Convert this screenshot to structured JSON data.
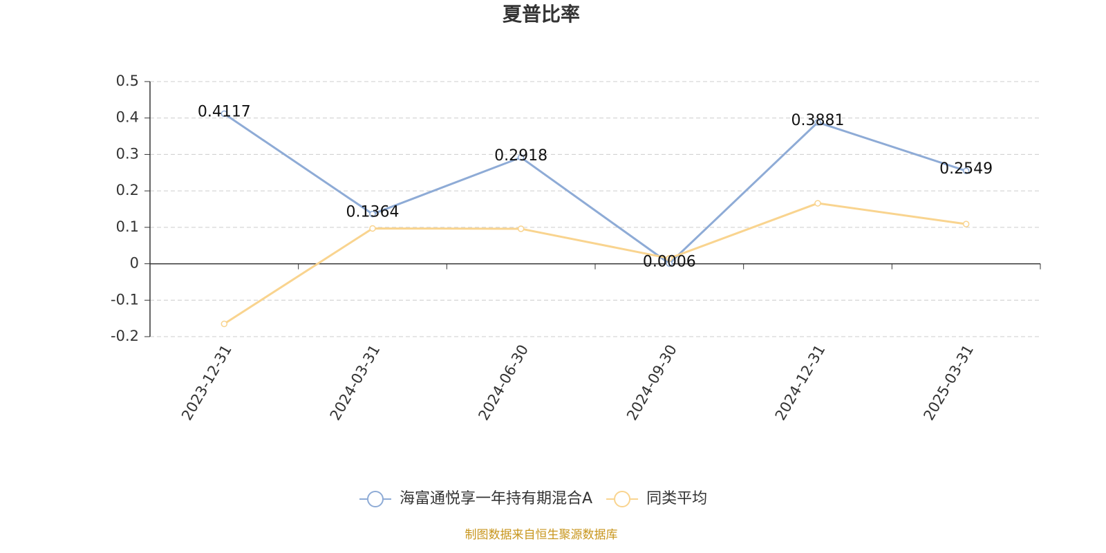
{
  "chart_data": {
    "type": "line",
    "title": "夏普比率",
    "categories": [
      "2023-12-31",
      "2024-03-31",
      "2024-06-30",
      "2024-09-30",
      "2024-12-31",
      "2025-03-31"
    ],
    "series": [
      {
        "name": "海富通悦享一年持有期混合A",
        "color": "#8eabd6",
        "values": [
          0.4117,
          0.1364,
          0.2918,
          0.0006,
          0.3881,
          0.2549
        ],
        "show_labels": true
      },
      {
        "name": "同类平均",
        "color": "#f9d48f",
        "values": [
          -0.165,
          0.097,
          0.096,
          0.015,
          0.166,
          0.109
        ],
        "show_labels": false
      }
    ],
    "ylim": [
      -0.2,
      0.5
    ],
    "yticks": [
      -0.2,
      -0.1,
      0,
      0.1,
      0.2,
      0.3,
      0.4,
      0.5
    ],
    "grid": true,
    "legend": "bottom",
    "source": "制图数据来自恒生聚源数据库"
  }
}
